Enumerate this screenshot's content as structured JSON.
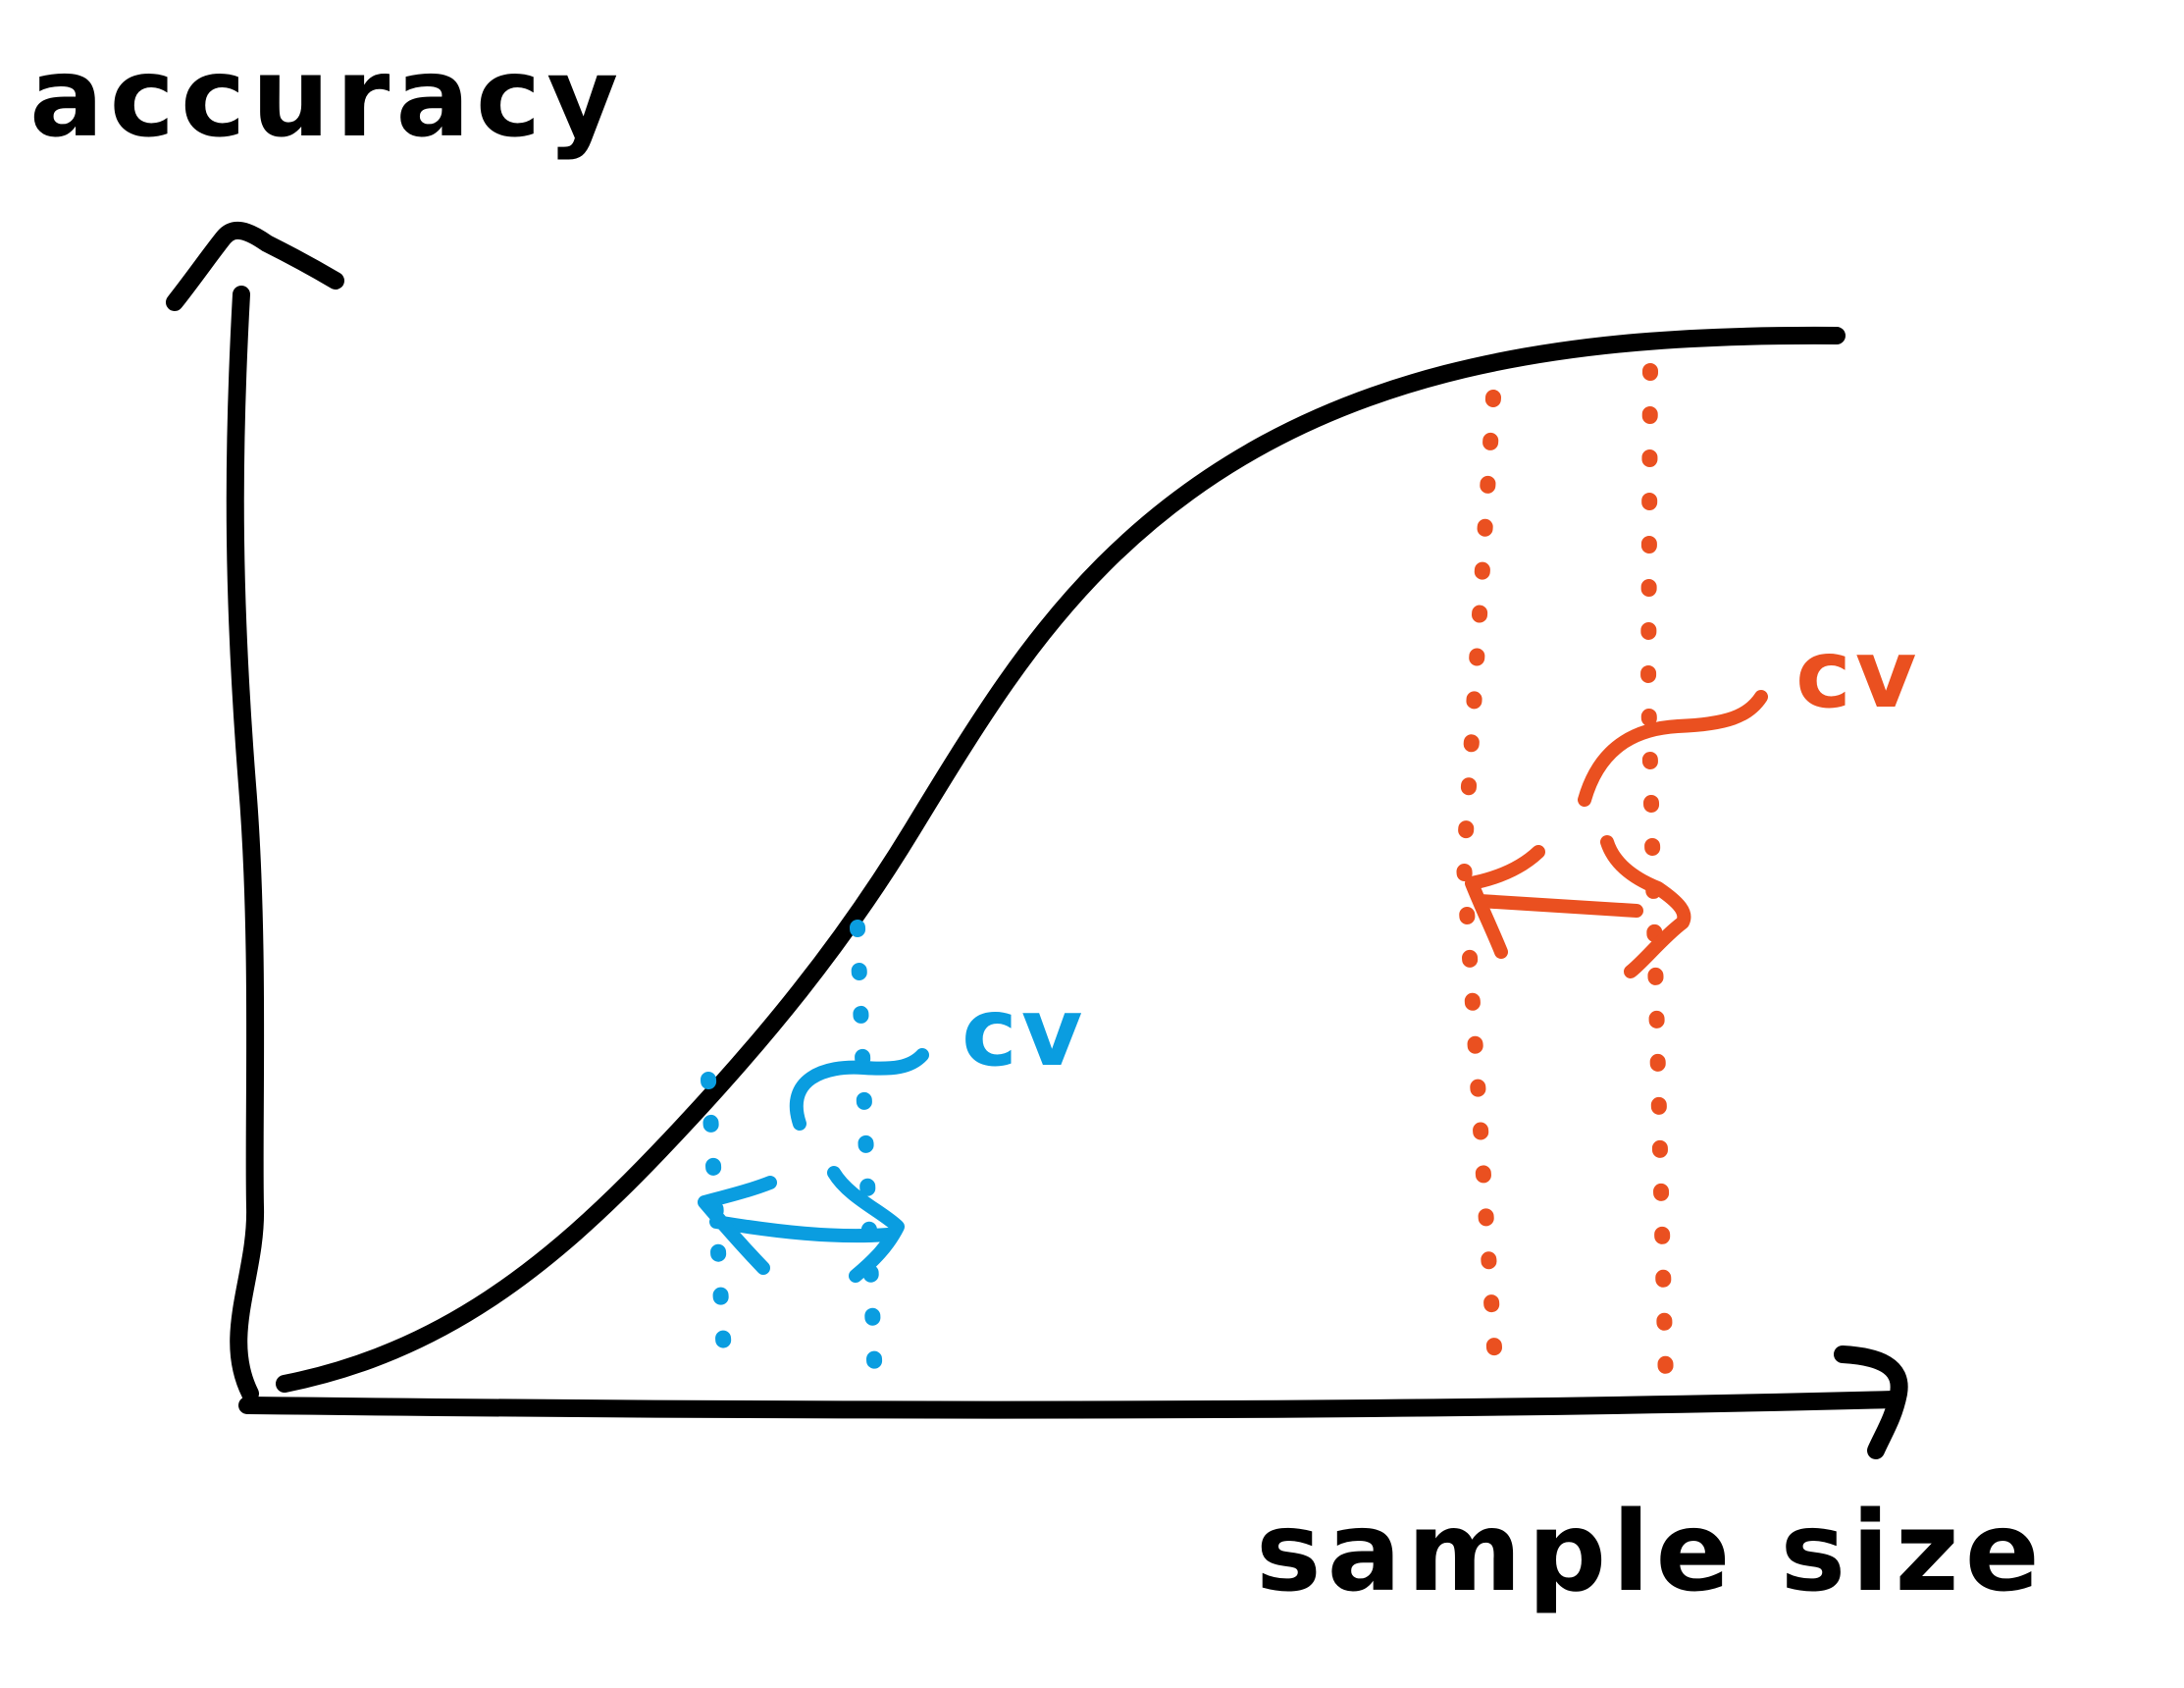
{
  "y_axis_label": "accuracy",
  "x_axis_label": "sample size",
  "colors": {
    "ink": "#000000",
    "blue": "#0a9de0",
    "orange": "#ea5020",
    "background": "#ffffff"
  },
  "annotations": [
    {
      "label": "cv",
      "color": "blue",
      "region": "steep part of curve (small sample size)"
    },
    {
      "label": "cv",
      "color": "orange",
      "region": "plateau of curve (large sample size)"
    }
  ],
  "curve": {
    "shape": "sigmoid learning curve",
    "type": "line"
  }
}
